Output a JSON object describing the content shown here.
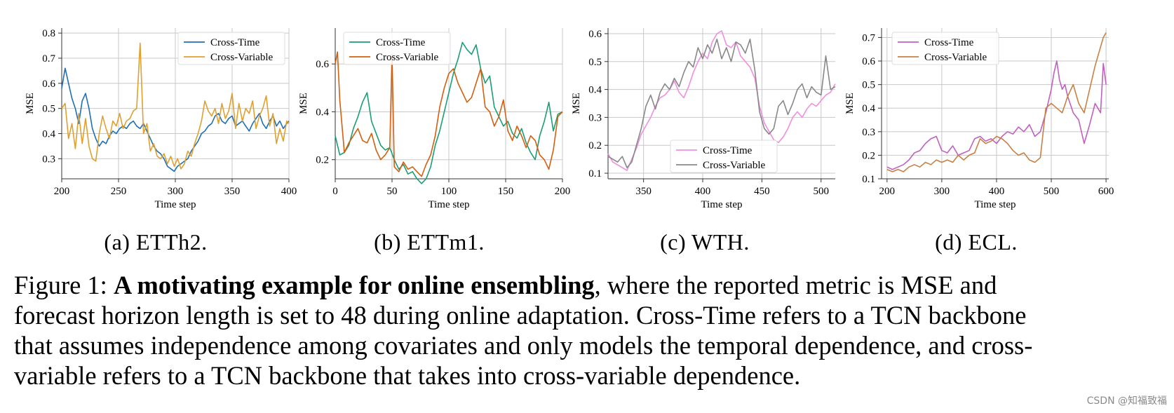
{
  "chart_data": [
    {
      "type": "line",
      "xlabel": "Time step",
      "ylabel": "MSE",
      "xlim": [
        200,
        400
      ],
      "ylim": [
        0.22,
        0.82
      ],
      "xticks": [
        200,
        250,
        300,
        350,
        400
      ],
      "yticks": [
        0.3,
        0.4,
        0.5,
        0.6,
        0.7,
        0.8
      ],
      "ytick_labels": [
        "0.3",
        "0.4",
        "0.5",
        "0.6",
        "0.7",
        "0.8"
      ],
      "grid": true,
      "legend": "top-right",
      "series": [
        {
          "name": "Cross-Time",
          "color": "#1f6fb4",
          "x": [
            200,
            203,
            206,
            209,
            212,
            215,
            218,
            221,
            224,
            227,
            230,
            233,
            236,
            239,
            242,
            245,
            248,
            251,
            254,
            257,
            260,
            263,
            266,
            269,
            272,
            275,
            278,
            281,
            284,
            287,
            290,
            293,
            296,
            299,
            302,
            305,
            308,
            311,
            314,
            317,
            320,
            323,
            326,
            329,
            332,
            335,
            338,
            341,
            344,
            347,
            350,
            353,
            356,
            359,
            362,
            365,
            368,
            371,
            374,
            377,
            380,
            383,
            386,
            389,
            392,
            395,
            398,
            400
          ],
          "values": [
            0.58,
            0.66,
            0.6,
            0.54,
            0.5,
            0.44,
            0.53,
            0.56,
            0.5,
            0.42,
            0.38,
            0.35,
            0.37,
            0.36,
            0.39,
            0.41,
            0.4,
            0.42,
            0.43,
            0.42,
            0.44,
            0.45,
            0.43,
            0.42,
            0.44,
            0.41,
            0.38,
            0.35,
            0.33,
            0.32,
            0.3,
            0.27,
            0.26,
            0.25,
            0.27,
            0.28,
            0.29,
            0.3,
            0.33,
            0.35,
            0.37,
            0.4,
            0.41,
            0.43,
            0.44,
            0.47,
            0.48,
            0.45,
            0.44,
            0.46,
            0.47,
            0.43,
            0.44,
            0.45,
            0.43,
            0.41,
            0.44,
            0.46,
            0.48,
            0.44,
            0.42,
            0.45,
            0.47,
            0.43,
            0.45,
            0.42,
            0.44,
            0.45
          ]
        },
        {
          "name": "Cross-Variable",
          "color": "#e0a030",
          "x": [
            200,
            203,
            206,
            209,
            212,
            215,
            218,
            221,
            224,
            227,
            230,
            233,
            236,
            239,
            242,
            245,
            248,
            251,
            254,
            257,
            260,
            263,
            266,
            269,
            272,
            275,
            278,
            281,
            284,
            287,
            290,
            293,
            296,
            299,
            302,
            305,
            308,
            311,
            314,
            317,
            320,
            323,
            326,
            329,
            332,
            335,
            338,
            341,
            344,
            347,
            350,
            353,
            356,
            359,
            362,
            365,
            368,
            371,
            374,
            377,
            380,
            383,
            386,
            389,
            392,
            395,
            398,
            400
          ],
          "values": [
            0.5,
            0.52,
            0.38,
            0.44,
            0.34,
            0.48,
            0.36,
            0.46,
            0.35,
            0.3,
            0.29,
            0.4,
            0.47,
            0.42,
            0.38,
            0.45,
            0.43,
            0.48,
            0.42,
            0.45,
            0.46,
            0.49,
            0.5,
            0.76,
            0.4,
            0.44,
            0.33,
            0.36,
            0.31,
            0.3,
            0.32,
            0.28,
            0.31,
            0.27,
            0.3,
            0.26,
            0.28,
            0.33,
            0.31,
            0.36,
            0.4,
            0.45,
            0.53,
            0.49,
            0.47,
            0.5,
            0.44,
            0.52,
            0.46,
            0.49,
            0.56,
            0.42,
            0.52,
            0.45,
            0.5,
            0.48,
            0.53,
            0.42,
            0.47,
            0.5,
            0.55,
            0.43,
            0.48,
            0.36,
            0.42,
            0.37,
            0.45,
            0.44
          ]
        }
      ]
    },
    {
      "type": "line",
      "xlabel": "Time step",
      "ylabel": "MSE",
      "xlim": [
        0,
        200
      ],
      "ylim": [
        0.12,
        0.75
      ],
      "xticks": [
        0,
        50,
        100,
        150,
        200
      ],
      "yticks": [
        0.2,
        0.4,
        0.6
      ],
      "ytick_labels": [
        "0.2",
        "0.4",
        "0.6"
      ],
      "grid": true,
      "legend": "top-left",
      "series": [
        {
          "name": "Cross-Time",
          "color": "#1a9e77",
          "x": [
            0,
            4,
            8,
            12,
            16,
            20,
            24,
            28,
            32,
            36,
            40,
            44,
            48,
            52,
            56,
            60,
            64,
            68,
            72,
            76,
            80,
            84,
            88,
            92,
            96,
            100,
            104,
            108,
            112,
            116,
            120,
            124,
            128,
            132,
            136,
            140,
            144,
            148,
            152,
            156,
            160,
            164,
            168,
            172,
            176,
            180,
            184,
            188,
            192,
            196,
            200
          ],
          "values": [
            0.3,
            0.22,
            0.23,
            0.26,
            0.33,
            0.38,
            0.44,
            0.48,
            0.36,
            0.31,
            0.26,
            0.24,
            0.25,
            0.2,
            0.16,
            0.18,
            0.14,
            0.15,
            0.12,
            0.1,
            0.12,
            0.17,
            0.26,
            0.32,
            0.4,
            0.48,
            0.56,
            0.62,
            0.69,
            0.66,
            0.64,
            0.68,
            0.58,
            0.52,
            0.55,
            0.42,
            0.38,
            0.34,
            0.36,
            0.31,
            0.29,
            0.33,
            0.27,
            0.23,
            0.2,
            0.3,
            0.36,
            0.44,
            0.32,
            0.39,
            0.4
          ]
        },
        {
          "name": "Cross-Variable",
          "color": "#d45f0e",
          "x": [
            0,
            2,
            4,
            8,
            12,
            16,
            20,
            24,
            28,
            32,
            36,
            40,
            44,
            48,
            50,
            52,
            56,
            60,
            64,
            68,
            72,
            76,
            80,
            84,
            88,
            92,
            96,
            100,
            104,
            108,
            112,
            116,
            120,
            124,
            128,
            132,
            136,
            140,
            144,
            148,
            152,
            156,
            160,
            164,
            168,
            172,
            176,
            180,
            184,
            188,
            192,
            196,
            200
          ],
          "values": [
            0.6,
            0.65,
            0.45,
            0.23,
            0.27,
            0.3,
            0.33,
            0.28,
            0.27,
            0.31,
            0.24,
            0.2,
            0.22,
            0.25,
            0.64,
            0.17,
            0.15,
            0.19,
            0.16,
            0.17,
            0.15,
            0.13,
            0.18,
            0.22,
            0.3,
            0.42,
            0.5,
            0.56,
            0.58,
            0.52,
            0.48,
            0.44,
            0.46,
            0.52,
            0.58,
            0.42,
            0.4,
            0.34,
            0.38,
            0.45,
            0.32,
            0.28,
            0.34,
            0.3,
            0.25,
            0.3,
            0.28,
            0.22,
            0.2,
            0.16,
            0.24,
            0.38,
            0.4
          ]
        }
      ]
    },
    {
      "type": "line",
      "xlabel": "Time step",
      "ylabel": "MSE",
      "xlim": [
        320,
        512
      ],
      "ylim": [
        0.08,
        0.62
      ],
      "xticks": [
        350,
        400,
        450,
        500
      ],
      "yticks": [
        0.1,
        0.2,
        0.3,
        0.4,
        0.5,
        0.6
      ],
      "ytick_labels": [
        "0.1",
        "0.2",
        "0.3",
        "0.4",
        "0.5",
        "0.6"
      ],
      "grid": true,
      "legend": "bottom-center",
      "series": [
        {
          "name": "Cross-Time",
          "color": "#f08ee0",
          "x": [
            320,
            324,
            328,
            332,
            336,
            340,
            344,
            348,
            352,
            356,
            360,
            364,
            368,
            372,
            376,
            380,
            384,
            388,
            392,
            396,
            400,
            404,
            408,
            412,
            416,
            420,
            424,
            428,
            432,
            436,
            440,
            444,
            448,
            452,
            456,
            460,
            464,
            468,
            472,
            476,
            480,
            484,
            488,
            492,
            496,
            500,
            504,
            508,
            512
          ],
          "values": [
            0.17,
            0.14,
            0.13,
            0.12,
            0.11,
            0.15,
            0.19,
            0.24,
            0.27,
            0.3,
            0.34,
            0.37,
            0.38,
            0.4,
            0.43,
            0.39,
            0.37,
            0.41,
            0.46,
            0.5,
            0.53,
            0.51,
            0.57,
            0.6,
            0.61,
            0.56,
            0.55,
            0.57,
            0.52,
            0.5,
            0.48,
            0.44,
            0.34,
            0.28,
            0.25,
            0.22,
            0.21,
            0.23,
            0.26,
            0.3,
            0.32,
            0.3,
            0.33,
            0.35,
            0.34,
            0.36,
            0.38,
            0.39,
            0.42
          ]
        },
        {
          "name": "Cross-Variable",
          "color": "#888888",
          "x": [
            320,
            324,
            328,
            332,
            336,
            340,
            344,
            348,
            352,
            356,
            360,
            364,
            368,
            372,
            376,
            380,
            384,
            388,
            392,
            396,
            400,
            404,
            408,
            412,
            416,
            420,
            424,
            428,
            432,
            436,
            440,
            444,
            448,
            452,
            456,
            460,
            464,
            468,
            472,
            476,
            480,
            484,
            488,
            492,
            496,
            500,
            504,
            508,
            512
          ],
          "values": [
            0.16,
            0.15,
            0.14,
            0.16,
            0.12,
            0.14,
            0.2,
            0.26,
            0.34,
            0.38,
            0.33,
            0.39,
            0.42,
            0.4,
            0.44,
            0.41,
            0.46,
            0.5,
            0.48,
            0.55,
            0.51,
            0.56,
            0.53,
            0.58,
            0.51,
            0.55,
            0.5,
            0.57,
            0.56,
            0.53,
            0.58,
            0.47,
            0.32,
            0.26,
            0.24,
            0.26,
            0.34,
            0.36,
            0.31,
            0.35,
            0.4,
            0.42,
            0.37,
            0.41,
            0.39,
            0.38,
            0.52,
            0.4,
            0.41
          ]
        }
      ]
    },
    {
      "type": "line",
      "xlabel": "Time step",
      "ylabel": "MSE",
      "xlim": [
        190,
        605
      ],
      "ylim": [
        0.1,
        0.74
      ],
      "xticks": [
        200,
        300,
        400,
        500,
        600
      ],
      "yticks": [
        0.1,
        0.2,
        0.3,
        0.4,
        0.5,
        0.6,
        0.7
      ],
      "ytick_labels": [
        "0.1",
        "0.2",
        "0.3",
        "0.4",
        "0.5",
        "0.6",
        "0.7"
      ],
      "grid": true,
      "legend": "top-left",
      "series": [
        {
          "name": "Cross-Time",
          "color": "#c060c0",
          "x": [
            200,
            210,
            220,
            230,
            240,
            250,
            260,
            270,
            280,
            290,
            300,
            310,
            320,
            330,
            340,
            350,
            360,
            370,
            380,
            390,
            400,
            410,
            420,
            430,
            440,
            450,
            460,
            470,
            480,
            490,
            500,
            505,
            510,
            515,
            520,
            525,
            530,
            540,
            550,
            560,
            570,
            580,
            590,
            595,
            600
          ],
          "values": [
            0.15,
            0.14,
            0.15,
            0.16,
            0.18,
            0.21,
            0.22,
            0.25,
            0.27,
            0.28,
            0.22,
            0.21,
            0.24,
            0.2,
            0.21,
            0.22,
            0.27,
            0.28,
            0.26,
            0.27,
            0.25,
            0.28,
            0.3,
            0.29,
            0.32,
            0.3,
            0.33,
            0.28,
            0.3,
            0.38,
            0.48,
            0.55,
            0.6,
            0.52,
            0.48,
            0.5,
            0.45,
            0.38,
            0.35,
            0.25,
            0.33,
            0.42,
            0.38,
            0.59,
            0.5
          ]
        },
        {
          "name": "Cross-Variable",
          "color": "#c88045",
          "x": [
            200,
            210,
            220,
            230,
            240,
            250,
            260,
            270,
            280,
            290,
            300,
            310,
            320,
            330,
            340,
            350,
            360,
            370,
            380,
            390,
            400,
            410,
            420,
            430,
            440,
            450,
            460,
            470,
            480,
            490,
            500,
            510,
            520,
            530,
            540,
            550,
            560,
            570,
            580,
            590,
            595,
            600
          ],
          "values": [
            0.14,
            0.13,
            0.14,
            0.13,
            0.15,
            0.16,
            0.15,
            0.17,
            0.16,
            0.18,
            0.17,
            0.18,
            0.17,
            0.2,
            0.18,
            0.2,
            0.21,
            0.27,
            0.25,
            0.26,
            0.28,
            0.27,
            0.25,
            0.22,
            0.2,
            0.21,
            0.18,
            0.17,
            0.19,
            0.4,
            0.42,
            0.4,
            0.38,
            0.45,
            0.5,
            0.42,
            0.38,
            0.48,
            0.58,
            0.66,
            0.7,
            0.72
          ]
        }
      ]
    }
  ],
  "panel_captions": {
    "a": "(a)  ETTh2.",
    "b": "(b)  ETTm1.",
    "c": "(c)  WTH.",
    "d": "(d)  ECL."
  },
  "caption": {
    "prefix": "Figure 1:  ",
    "bold": "A motivating example for online ensembling",
    "line1_rest": ", where the reported metric is MSE and",
    "line2": "forecast horizon length is set to 48 during online adaptation. Cross-Time refers to a TCN backbone",
    "line3": "that assumes independence among covariates and only models the temporal dependence, and cross-",
    "line4": "variable refers to a TCN backbone that takes into cross-variable dependence."
  },
  "watermark": "CSDN @知福致福"
}
